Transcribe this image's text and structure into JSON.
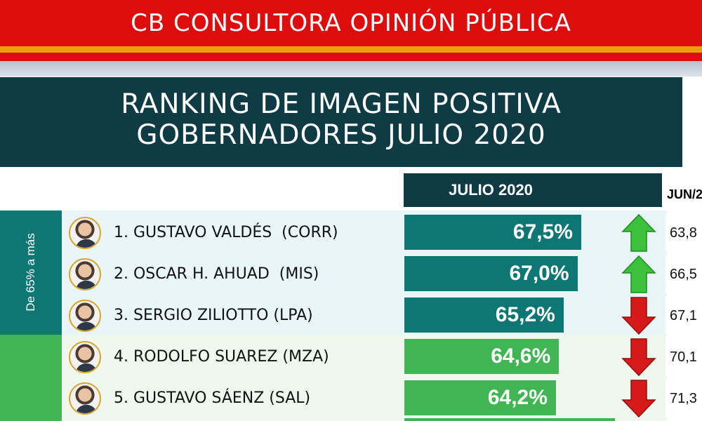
{
  "header": {
    "brand": "CB CONSULTORA OPINIÓN PÚBLICA",
    "title_line1": "RANKING DE IMAGEN POSITIVA",
    "title_line2": "GOBERNADORES JULIO 2020"
  },
  "columns": {
    "current": "JULIO 2020",
    "previous": "JUN/2"
  },
  "groups": [
    {
      "label": "De 65% a más",
      "color": "#0e7773"
    },
    {
      "label": "",
      "color": "#40b554"
    }
  ],
  "colors": {
    "red": "#dd0d0d",
    "orange": "#f39c12",
    "navy": "#0f3b45",
    "teal": "#0e7773",
    "green": "#40b554",
    "arrow_up": "#3cc13c",
    "arrow_down": "#d61a1a"
  },
  "chart_data": {
    "type": "bar",
    "title": "RANKING DE IMAGEN POSITIVA GOBERNADORES JULIO 2020",
    "categories": [
      "1. GUSTAVO VALDÉS  (CORR)",
      "2. OSCAR H. AHUAD  (MIS)",
      "3. SERGIO ZILIOTTO (LPA)",
      "4. RODOLFO SUAREZ (MZA)",
      "5. GUSTAVO SÁENZ (SAL)"
    ],
    "series": [
      {
        "name": "JULIO 2020",
        "values": [
          67.5,
          67.0,
          65.2,
          64.6,
          64.2
        ]
      }
    ],
    "labels": [
      "67,5%",
      "67,0%",
      "65,2%",
      "64,6%",
      "64,2%"
    ],
    "trend": [
      "up",
      "up",
      "down",
      "down",
      "down"
    ],
    "previous_labels": [
      "63,8",
      "66,5",
      "67,1",
      "70,1",
      "71,3"
    ],
    "bar_colors": [
      "#0e7773",
      "#0e7773",
      "#0e7773",
      "#40b554",
      "#40b554"
    ]
  }
}
